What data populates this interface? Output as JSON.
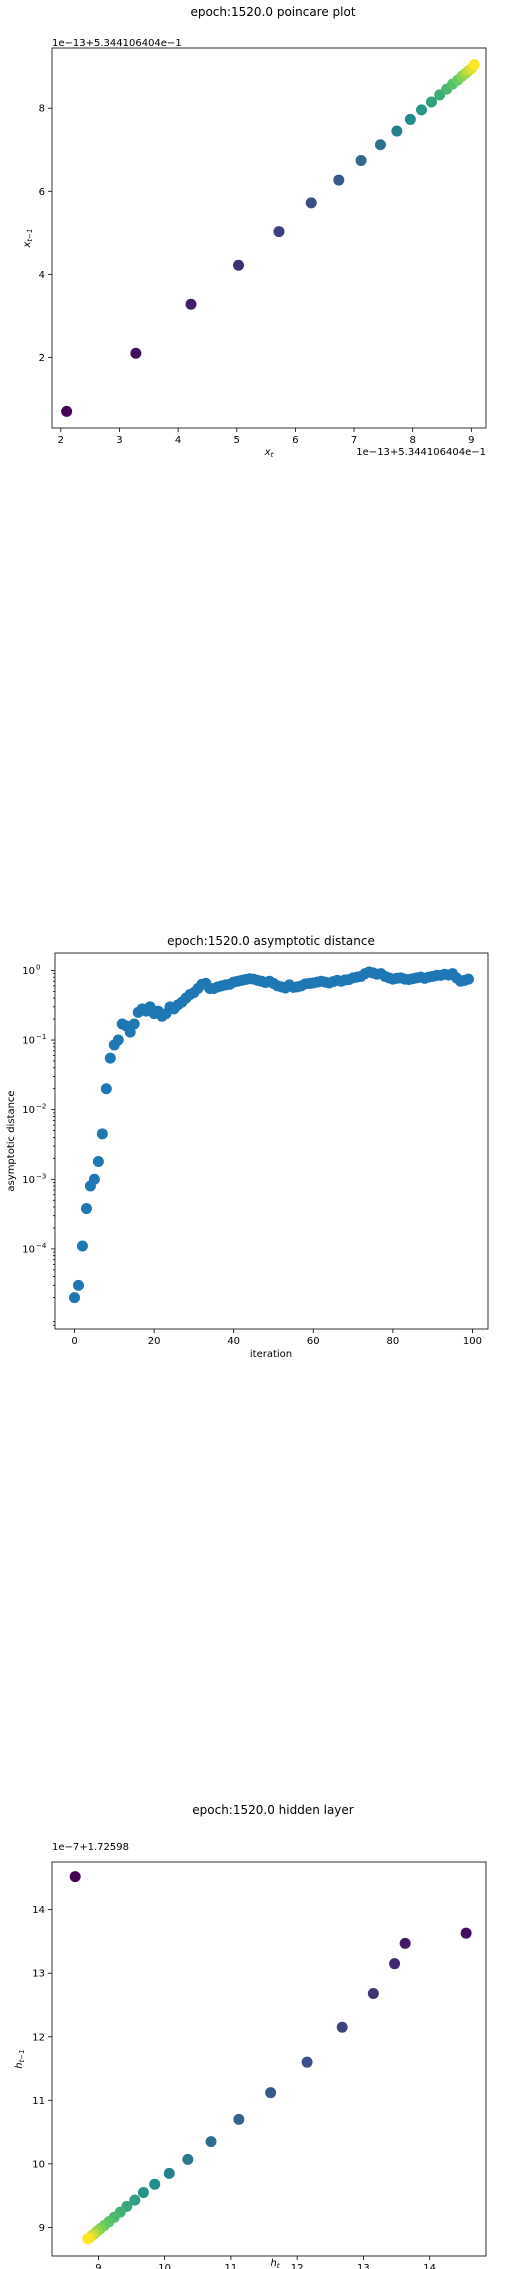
{
  "chart_data": [
    {
      "type": "scatter",
      "title": "epoch:1520.0 poincare plot",
      "xlabel": "x_t",
      "ylabel": "x_{t-1}",
      "x_offset_text": "1e−13+5.344106404e−1",
      "y_offset_text": "1e−13+5.344106404e−1",
      "xlim": [
        1.85,
        9.25
      ],
      "ylim": [
        0.3,
        9.45
      ],
      "xticks": [
        2,
        3,
        4,
        5,
        6,
        7,
        8,
        9
      ],
      "yticks": [
        2,
        4,
        6,
        8
      ],
      "colormap": [
        "#440154",
        "#3b528b",
        "#21918c",
        "#5ec962",
        "#fde725"
      ],
      "x": [
        2.1,
        3.28,
        4.22,
        5.03,
        5.72,
        6.27,
        6.74,
        7.12,
        7.45,
        7.73,
        7.96,
        8.15,
        8.32,
        8.46,
        8.58,
        8.68,
        8.77,
        8.84,
        8.9,
        8.95,
        9.0,
        9.05
      ],
      "y": [
        0.7,
        2.1,
        3.28,
        4.22,
        5.03,
        5.72,
        6.27,
        6.74,
        7.12,
        7.45,
        7.73,
        7.96,
        8.15,
        8.32,
        8.46,
        8.58,
        8.68,
        8.77,
        8.84,
        8.9,
        8.95,
        9.05
      ]
    },
    {
      "type": "scatter",
      "title": "epoch:1520.0 asymptotic distance",
      "xlabel": "iteration",
      "ylabel": "asymptotic distance",
      "yscale": "log",
      "xlim": [
        -4.9,
        103.9
      ],
      "ylim_exp": [
        -5.15,
        0.25
      ],
      "xticks": [
        0,
        20,
        40,
        60,
        80,
        100
      ],
      "yticks": [
        "10^{-4}",
        "10^{-3}",
        "10^{-2}",
        "10^{-1}",
        "10^{0}"
      ],
      "color": "#1f77b4",
      "x": [
        0,
        1,
        2,
        3,
        4,
        5,
        6,
        7,
        8,
        9,
        10,
        11,
        12,
        13,
        14,
        15,
        16,
        17,
        18,
        19,
        20,
        21,
        22,
        23,
        24,
        25,
        26,
        27,
        28,
        29,
        30,
        31,
        32,
        33,
        34,
        35,
        36,
        37,
        38,
        39,
        40,
        41,
        42,
        43,
        44,
        45,
        46,
        47,
        48,
        49,
        50,
        51,
        52,
        53,
        54,
        55,
        56,
        57,
        58,
        59,
        60,
        61,
        62,
        63,
        64,
        65,
        66,
        67,
        68,
        69,
        70,
        71,
        72,
        73,
        74,
        75,
        76,
        77,
        78,
        79,
        80,
        81,
        82,
        83,
        84,
        85,
        86,
        87,
        88,
        89,
        90,
        91,
        92,
        93,
        94,
        95,
        96,
        97,
        98,
        99
      ],
      "y": [
        2e-05,
        3e-05,
        0.00011,
        0.00038,
        0.0008,
        0.001,
        0.0018,
        0.0045,
        0.02,
        0.055,
        0.085,
        0.1,
        0.17,
        0.16,
        0.13,
        0.17,
        0.25,
        0.28,
        0.26,
        0.3,
        0.24,
        0.26,
        0.22,
        0.24,
        0.3,
        0.28,
        0.32,
        0.35,
        0.4,
        0.45,
        0.48,
        0.55,
        0.63,
        0.65,
        0.55,
        0.55,
        0.58,
        0.6,
        0.62,
        0.63,
        0.68,
        0.7,
        0.72,
        0.74,
        0.76,
        0.75,
        0.72,
        0.7,
        0.67,
        0.7,
        0.65,
        0.6,
        0.58,
        0.56,
        0.62,
        0.57,
        0.58,
        0.6,
        0.64,
        0.65,
        0.66,
        0.68,
        0.7,
        0.68,
        0.66,
        0.69,
        0.72,
        0.7,
        0.73,
        0.74,
        0.78,
        0.8,
        0.82,
        0.9,
        0.95,
        0.92,
        0.88,
        0.9,
        0.82,
        0.78,
        0.75,
        0.77,
        0.78,
        0.75,
        0.74,
        0.76,
        0.78,
        0.8,
        0.77,
        0.8,
        0.82,
        0.85,
        0.85,
        0.88,
        0.86,
        0.9,
        0.78,
        0.7,
        0.72,
        0.75
      ]
    },
    {
      "type": "scatter",
      "title": "epoch:1520.0 hidden layer",
      "xlabel": "h_t",
      "ylabel": "h_{t-1}",
      "x_offset_text": "1e−7+1.72598",
      "y_offset_text": "1e−7+1.72598",
      "xlim": [
        8.3,
        14.85
      ],
      "ylim": [
        8.55,
        14.75
      ],
      "xticks": [
        9,
        10,
        11,
        12,
        13,
        14
      ],
      "yticks": [
        9,
        10,
        11,
        12,
        13,
        14
      ],
      "colormap": [
        "#440154",
        "#3b528b",
        "#21918c",
        "#5ec962",
        "#fde725"
      ],
      "x": [
        8.65,
        14.55,
        13.63,
        13.47,
        13.15,
        12.68,
        12.15,
        11.6,
        11.12,
        10.7,
        10.35,
        10.07,
        9.85,
        9.68,
        9.55,
        9.43,
        9.33,
        9.24,
        9.16,
        9.09,
        9.03,
        8.98,
        8.94,
        8.9,
        8.87,
        8.84
      ],
      "y": [
        14.52,
        13.63,
        13.47,
        13.15,
        12.68,
        12.15,
        11.6,
        11.12,
        10.7,
        10.35,
        10.07,
        9.85,
        9.68,
        9.55,
        9.43,
        9.33,
        9.24,
        9.16,
        9.09,
        9.03,
        8.98,
        8.94,
        8.9,
        8.87,
        8.84,
        8.82
      ]
    }
  ]
}
